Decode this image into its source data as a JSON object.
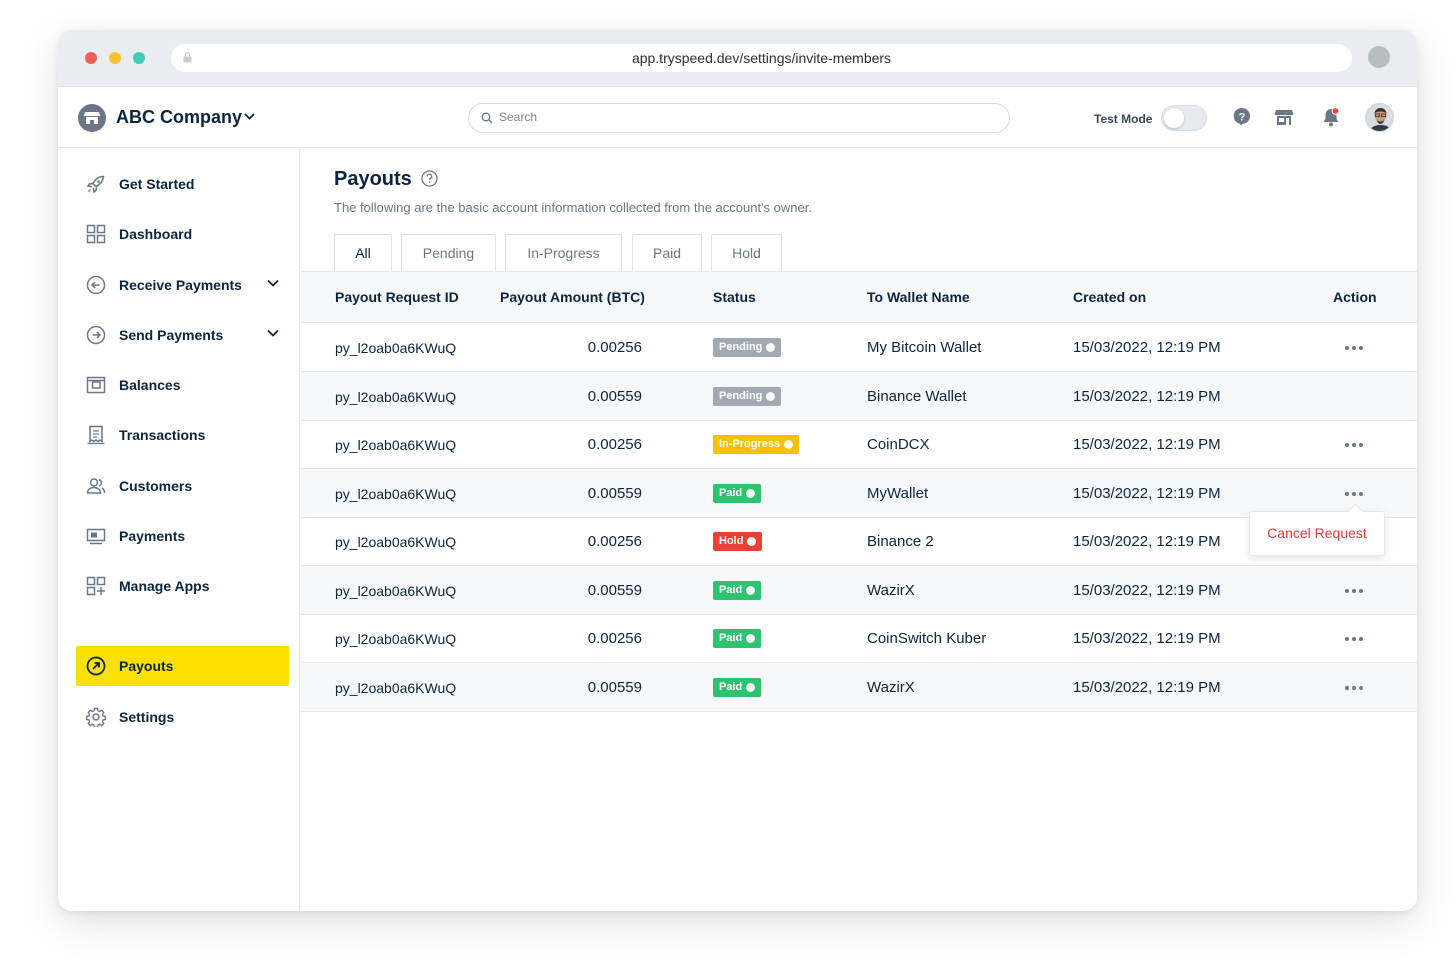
{
  "browser": {
    "url": "app.tryspeed.dev/settings/invite-members"
  },
  "topbar": {
    "company_name": "ABC Company",
    "search_placeholder": "Search",
    "test_mode_label": "Test Mode",
    "test_mode_on": false
  },
  "sidebar": {
    "items": [
      {
        "label": "Get Started",
        "icon": "rocket-icon"
      },
      {
        "label": "Dashboard",
        "icon": "grid-icon"
      },
      {
        "label": "Receive Payments",
        "icon": "arrow-left-circle-icon",
        "expandable": true
      },
      {
        "label": "Send Payments",
        "icon": "arrow-right-circle-icon",
        "expandable": true
      },
      {
        "label": "Balances",
        "icon": "wallet-icon"
      },
      {
        "label": "Transactions",
        "icon": "receipt-icon"
      },
      {
        "label": "Customers",
        "icon": "users-icon"
      },
      {
        "label": "Payments",
        "icon": "payment-icon"
      },
      {
        "label": "Manage Apps",
        "icon": "apps-icon"
      },
      {
        "label": "Payouts",
        "icon": "payout-icon",
        "active": true
      },
      {
        "label": "Settings",
        "icon": "gear-icon"
      }
    ]
  },
  "main": {
    "title": "Payouts",
    "subtitle": "The following are the basic account information collected from the account's owner.",
    "tabs": [
      "All",
      "Pending",
      "In-Progress",
      "Paid",
      "Hold"
    ],
    "active_tab": "All",
    "columns": [
      "Payout Request ID",
      "Payout Amount (BTC)",
      "Status",
      "To Wallet Name",
      "Created on",
      "Action"
    ],
    "rows": [
      {
        "id": "py_l2oab0a6KWuQ",
        "amount": "0.00256",
        "status": "Pending",
        "wallet": "My Bitcoin Wallet",
        "created": "15/03/2022, 12:19 PM"
      },
      {
        "id": "py_l2oab0a6KWuQ",
        "amount": "0.00559",
        "status": "Pending",
        "wallet": "Binance Wallet",
        "created": "15/03/2022, 12:19 PM"
      },
      {
        "id": "py_l2oab0a6KWuQ",
        "amount": "0.00256",
        "status": "In-Progress",
        "wallet": "CoinDCX",
        "created": "15/03/2022, 12:19 PM"
      },
      {
        "id": "py_l2oab0a6KWuQ",
        "amount": "0.00559",
        "status": "Paid",
        "wallet": "MyWallet",
        "created": "15/03/2022, 12:19 PM"
      },
      {
        "id": "py_l2oab0a6KWuQ",
        "amount": "0.00256",
        "status": "Hold",
        "wallet": "Binance 2",
        "created": "15/03/2022, 12:19 PM"
      },
      {
        "id": "py_l2oab0a6KWuQ",
        "amount": "0.00559",
        "status": "Paid",
        "wallet": "WazirX",
        "created": "15/03/2022, 12:19 PM"
      },
      {
        "id": "py_l2oab0a6KWuQ",
        "amount": "0.00256",
        "status": "Paid",
        "wallet": "CoinSwitch Kuber",
        "created": "15/03/2022, 12:19 PM"
      },
      {
        "id": "py_l2oab0a6KWuQ",
        "amount": "0.00559",
        "status": "Paid",
        "wallet": "WazirX",
        "created": "15/03/2022, 12:19 PM"
      }
    ],
    "action_menu": {
      "cancel_label": "Cancel Request"
    }
  },
  "colors": {
    "accent_yellow": "#fbe000",
    "pending": "#a2a9b2",
    "in_progress": "#f4c202",
    "paid": "#2ec46f",
    "hold": "#eb4134",
    "cancel_red": "#e53935"
  }
}
